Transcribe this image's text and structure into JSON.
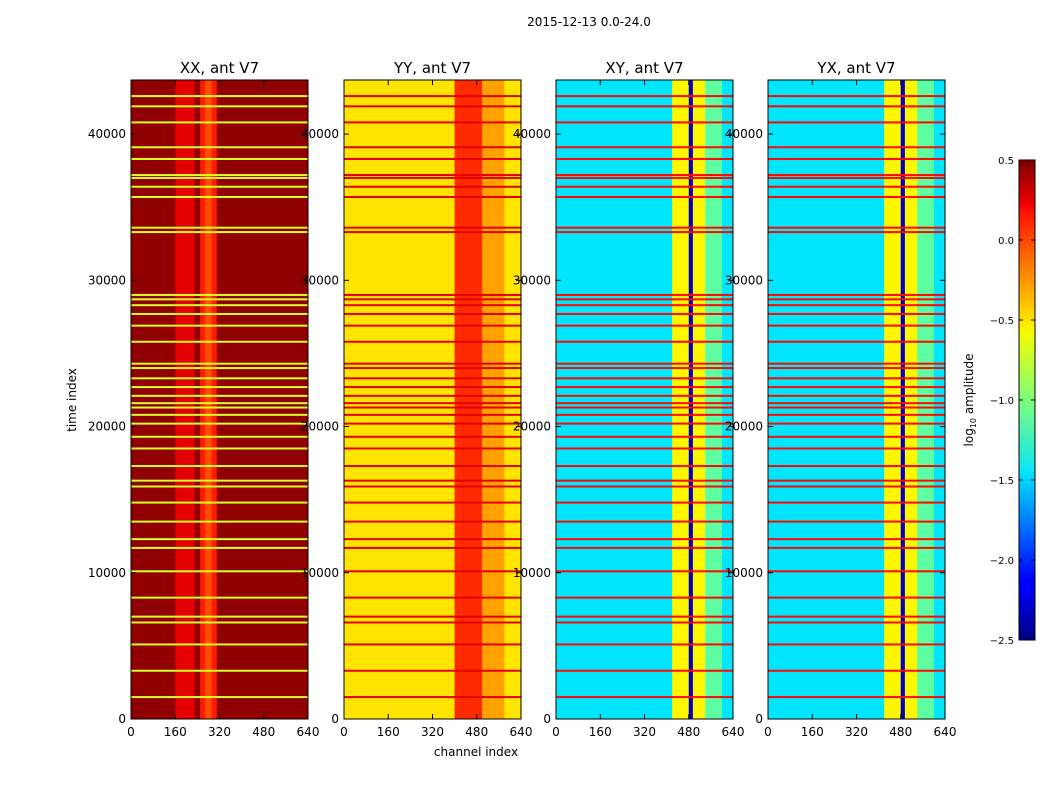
{
  "figure": {
    "suptitle": "2015-12-13 0.0-24.0"
  },
  "chart_data": {
    "type": "heatmap",
    "xlabel": "channel index",
    "ylabel": "time index",
    "xlim": [
      0,
      640
    ],
    "ylim": [
      0,
      43700
    ],
    "xticks": [
      0,
      160,
      320,
      480,
      640
    ],
    "yticks": [
      0,
      10000,
      20000,
      30000,
      40000
    ],
    "colorbar": {
      "label": "log10 amplitude",
      "label_base": "log",
      "label_sub": "10",
      "label_rest": " amplitude",
      "range": [
        -2.5,
        0.5
      ],
      "ticks": [
        0.5,
        0.0,
        -0.5,
        -1.0,
        -1.5,
        -2.0,
        -2.5
      ],
      "tick_labels": [
        "0.5",
        "0.0",
        "−0.5",
        "−1.0",
        "−1.5",
        "−2.0",
        "−2.5"
      ],
      "colormap": "jet"
    },
    "flag_rows_time_index": [
      1500,
      3300,
      5100,
      6600,
      7000,
      8300,
      10100,
      11700,
      12300,
      13500,
      14800,
      15900,
      16300,
      17300,
      18500,
      19300,
      20200,
      20800,
      21300,
      21600,
      22100,
      22700,
      23300,
      24000,
      24300,
      25800,
      26900,
      27700,
      28300,
      28700,
      29000,
      33300,
      33600,
      35700,
      36400,
      37000,
      37200,
      38300,
      39100,
      40800,
      41900,
      42600
    ],
    "panels": [
      {
        "title": "XX, ant V7",
        "base_level": 0.45,
        "bands": [
          {
            "channel_range": [
              160,
              230
            ],
            "level": 0.2
          },
          {
            "channel_range": [
              250,
              310
            ],
            "level": 0.05
          },
          {
            "channel_range": [
              268,
              292
            ],
            "level": -0.1
          }
        ],
        "flag_level": -0.75
      },
      {
        "title": "YY, ant V7",
        "base_level": -0.55,
        "bands": [
          {
            "channel_range": [
              400,
              500
            ],
            "level": 0.0
          },
          {
            "channel_range": [
              500,
              580
            ],
            "level": -0.35
          }
        ],
        "flag_level": 0.2
      },
      {
        "title": "XY, ant V7",
        "base_level": -1.45,
        "bands": [
          {
            "channel_range": [
              420,
              540
            ],
            "level": -0.6
          },
          {
            "channel_range": [
              540,
              600
            ],
            "level": -1.1
          },
          {
            "channel_range": [
              480,
              495
            ],
            "level": -2.3
          }
        ],
        "flag_level": 0.1
      },
      {
        "title": "YX, ant V7",
        "base_level": -1.45,
        "bands": [
          {
            "channel_range": [
              420,
              540
            ],
            "level": -0.6
          },
          {
            "channel_range": [
              540,
              600
            ],
            "level": -1.1
          },
          {
            "channel_range": [
              480,
              495
            ],
            "level": -2.3
          }
        ],
        "flag_level": 0.1
      }
    ]
  }
}
